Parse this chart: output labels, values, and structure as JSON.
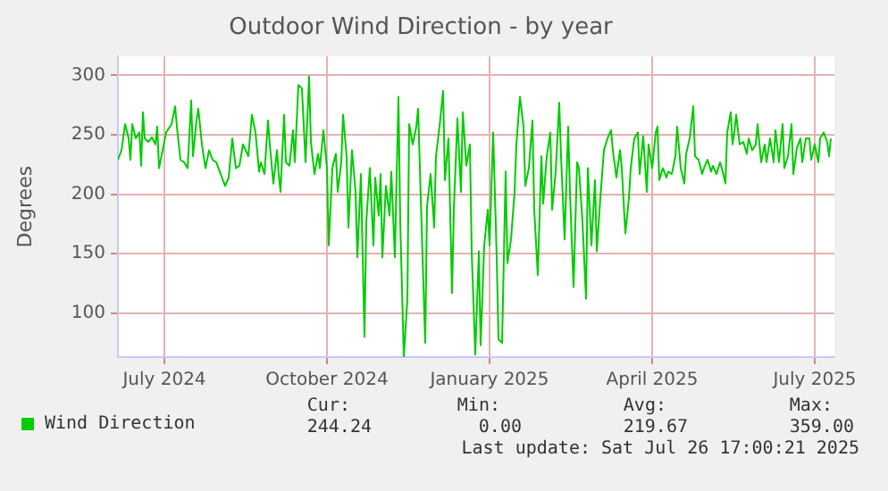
{
  "chart_data": {
    "type": "line",
    "title": "Outdoor Wind Direction - by year",
    "ylabel": "Degrees",
    "x": [
      "2024-06-20",
      "2024-06-22",
      "2024-06-24",
      "2024-06-26",
      "2024-06-27",
      "2024-06-28",
      "2024-06-30",
      "2024-07-02",
      "2024-07-03",
      "2024-07-04",
      "2024-07-05",
      "2024-07-07",
      "2024-07-09",
      "2024-07-11",
      "2024-07-12",
      "2024-07-13",
      "2024-07-15",
      "2024-07-17",
      "2024-07-20",
      "2024-07-22",
      "2024-07-23",
      "2024-07-25",
      "2024-07-27",
      "2024-07-29",
      "2024-07-31",
      "2024-08-01",
      "2024-08-03",
      "2024-08-04",
      "2024-08-06",
      "2024-08-08",
      "2024-08-10",
      "2024-08-12",
      "2024-08-14",
      "2024-08-16",
      "2024-08-19",
      "2024-08-21",
      "2024-08-23",
      "2024-08-25",
      "2024-08-27",
      "2024-08-29",
      "2024-09-01",
      "2024-09-03",
      "2024-09-05",
      "2024-09-07",
      "2024-09-08",
      "2024-09-10",
      "2024-09-12",
      "2024-09-13",
      "2024-09-15",
      "2024-09-17",
      "2024-09-18",
      "2024-09-19",
      "2024-09-21",
      "2024-09-22",
      "2024-09-24",
      "2024-09-26",
      "2024-09-27",
      "2024-09-29",
      "2024-10-01",
      "2024-10-03",
      "2024-10-05",
      "2024-10-06",
      "2024-10-08",
      "2024-10-10",
      "2024-10-11",
      "2024-10-13",
      "2024-10-15",
      "2024-10-16",
      "2024-10-18",
      "2024-10-20",
      "2024-10-21",
      "2024-10-23",
      "2024-10-24",
      "2024-10-26",
      "2024-10-27",
      "2024-10-29",
      "2024-10-31",
      "2024-11-01",
      "2024-11-03",
      "2024-11-05",
      "2024-11-06",
      "2024-11-08",
      "2024-11-10",
      "2024-11-11",
      "2024-11-13",
      "2024-11-14",
      "2024-11-15",
      "2024-11-17",
      "2024-11-19",
      "2024-11-20",
      "2024-11-22",
      "2024-11-24",
      "2024-11-25",
      "2024-11-27",
      "2024-11-29",
      "2024-11-30",
      "2024-12-02",
      "2024-12-04",
      "2024-12-05",
      "2024-12-07",
      "2024-12-09",
      "2024-12-10",
      "2024-12-12",
      "2024-12-14",
      "2024-12-15",
      "2024-12-17",
      "2024-12-19",
      "2024-12-20",
      "2024-12-22",
      "2024-12-24",
      "2024-12-25",
      "2024-12-27",
      "2024-12-29",
      "2024-12-30",
      "2025-01-01",
      "2025-01-03",
      "2025-01-04",
      "2025-01-06",
      "2025-01-08",
      "2025-01-09",
      "2025-01-11",
      "2025-01-13",
      "2025-01-14",
      "2025-01-16",
      "2025-01-18",
      "2025-01-19",
      "2025-01-21",
      "2025-01-23",
      "2025-01-24",
      "2025-01-26",
      "2025-01-28",
      "2025-01-29",
      "2025-01-31",
      "2025-02-02",
      "2025-02-03",
      "2025-02-05",
      "2025-02-07",
      "2025-02-08",
      "2025-02-10",
      "2025-02-12",
      "2025-02-13",
      "2025-02-15",
      "2025-02-17",
      "2025-02-18",
      "2025-02-20",
      "2025-02-22",
      "2025-02-23",
      "2025-02-25",
      "2025-02-27",
      "2025-02-28",
      "2025-03-02",
      "2025-03-04",
      "2025-03-05",
      "2025-03-07",
      "2025-03-09",
      "2025-03-10",
      "2025-03-12",
      "2025-03-14",
      "2025-03-15",
      "2025-03-17",
      "2025-03-19",
      "2025-03-21",
      "2025-03-23",
      "2025-03-24",
      "2025-03-26",
      "2025-03-28",
      "2025-03-29",
      "2025-03-31",
      "2025-04-02",
      "2025-04-03",
      "2025-04-05",
      "2025-04-07",
      "2025-04-08",
      "2025-04-10",
      "2025-04-12",
      "2025-04-13",
      "2025-04-15",
      "2025-04-17",
      "2025-04-18",
      "2025-04-19",
      "2025-04-21",
      "2025-04-23",
      "2025-04-24",
      "2025-04-26",
      "2025-04-28",
      "2025-04-29",
      "2025-05-01",
      "2025-05-03",
      "2025-05-04",
      "2025-05-06",
      "2025-05-08",
      "2025-05-09",
      "2025-05-11",
      "2025-05-13",
      "2025-05-14",
      "2025-05-16",
      "2025-05-18",
      "2025-05-19",
      "2025-05-21",
      "2025-05-23",
      "2025-05-24",
      "2025-05-26",
      "2025-05-27",
      "2025-05-29",
      "2025-05-30",
      "2025-05-31",
      "2025-06-01",
      "2025-06-03",
      "2025-06-05",
      "2025-06-07",
      "2025-06-08",
      "2025-06-10",
      "2025-06-12",
      "2025-06-13",
      "2025-06-15",
      "2025-06-17",
      "2025-06-18",
      "2025-06-20",
      "2025-06-22",
      "2025-06-23",
      "2025-06-25",
      "2025-06-27",
      "2025-06-28",
      "2025-06-30",
      "2025-07-02",
      "2025-07-03",
      "2025-07-05",
      "2025-07-07",
      "2025-07-08",
      "2025-07-10",
      "2025-07-12",
      "2025-07-13",
      "2025-07-15",
      "2025-07-17",
      "2025-07-18",
      "2025-07-20",
      "2025-07-22",
      "2025-07-23",
      "2025-07-24"
    ],
    "series": [
      {
        "name": "Wind Direction",
        "color": "#00cc00",
        "values": [
          229,
          237,
          259,
          247,
          229,
          259,
          247,
          252,
          224,
          269,
          247,
          244,
          248,
          242,
          257,
          222,
          237,
          252,
          259,
          274,
          257,
          229,
          227,
          222,
          279,
          232,
          262,
          272,
          242,
          222,
          237,
          229,
          227,
          219,
          207,
          214,
          247,
          222,
          224,
          242,
          232,
          267,
          252,
          219,
          227,
          217,
          262,
          242,
          209,
          237,
          217,
          202,
          267,
          227,
          224,
          254,
          227,
          292,
          289,
          227,
          299,
          244,
          217,
          234,
          222,
          254,
          222,
          157,
          222,
          234,
          202,
          227,
          267,
          232,
          172,
          237,
          202,
          147,
          217,
          80,
          177,
          222,
          157,
          214,
          182,
          217,
          147,
          207,
          182,
          219,
          147,
          282,
          177,
          63,
          112,
          259,
          242,
          257,
          272,
          172,
          75,
          190,
          217,
          172,
          232,
          257,
          287,
          212,
          247,
          117,
          187,
          264,
          202,
          269,
          224,
          242,
          152,
          65,
          152,
          73,
          157,
          187,
          157,
          252,
          147,
          78,
          75,
          219,
          142,
          162,
          202,
          242,
          282,
          257,
          207,
          222,
          262,
          187,
          132,
          232,
          192,
          232,
          252,
          187,
          219,
          277,
          232,
          162,
          257,
          202,
          122,
          227,
          222,
          177,
          112,
          222,
          157,
          212,
          152,
          197,
          237,
          247,
          254,
          237,
          214,
          237,
          222,
          167,
          197,
          222,
          247,
          252,
          217,
          249,
          202,
          242,
          222,
          252,
          257,
          212,
          222,
          214,
          219,
          217,
          232,
          257,
          222,
          209,
          234,
          247,
          274,
          232,
          229,
          217,
          222,
          229,
          219,
          224,
          217,
          227,
          222,
          209,
          252,
          269,
          242,
          252,
          267,
          242,
          244,
          234,
          247,
          237,
          242,
          259,
          227,
          242,
          227,
          247,
          227,
          254,
          227,
          259,
          222,
          232,
          259,
          217,
          239,
          247,
          227,
          247,
          247,
          229,
          242,
          227,
          247,
          252,
          244,
          232,
          247
        ]
      }
    ],
    "xlim": [
      "2024-06-20",
      "2025-07-26"
    ],
    "xticks": [
      {
        "value": "2024-07-16",
        "label": "July 2024"
      },
      {
        "value": "2024-10-15",
        "label": "October 2024"
      },
      {
        "value": "2025-01-14",
        "label": "January 2025"
      },
      {
        "value": "2025-04-15",
        "label": "April 2025"
      },
      {
        "value": "2025-07-15",
        "label": "July 2025"
      }
    ],
    "ylim": [
      63,
      316
    ],
    "yticks": [
      100,
      150,
      200,
      250,
      300
    ],
    "grid": true,
    "legend": "bottom",
    "marker": "none",
    "line_style": "solid",
    "annotations": [
      "Cur:",
      "Min:",
      "Avg:",
      "Max:",
      "244.24",
      "0.00",
      "219.67",
      "359.00",
      "Last update: Sat Jul 26 17:00:21 2025"
    ]
  }
}
